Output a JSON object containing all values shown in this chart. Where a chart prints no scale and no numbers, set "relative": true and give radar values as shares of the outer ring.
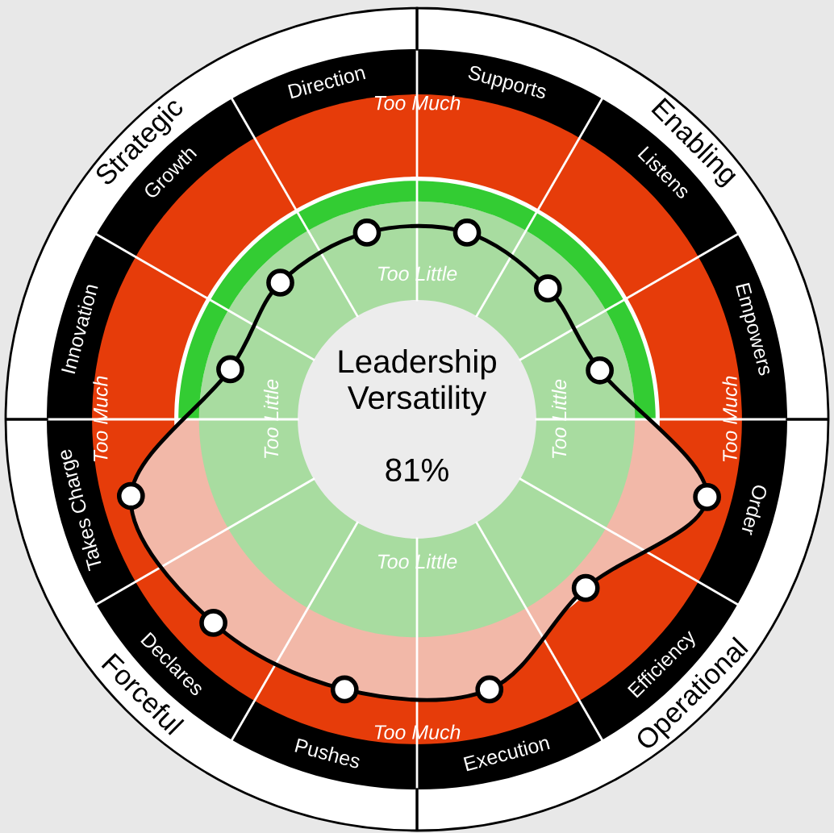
{
  "chart_data": {
    "type": "radar",
    "relative": true,
    "title": "Leadership\nVersatility",
    "subtitle": "81%",
    "categories": [
      "Direction",
      "Supports",
      "Listens",
      "Empowers",
      "Order",
      "Efficiency",
      "Execution",
      "Pushes",
      "Declares",
      "Takes Charge",
      "Innovation",
      "Growth"
    ],
    "series": [
      {
        "color": "#000000",
        "values": [
          0.47,
          0.47,
          0.45,
          0.46,
          0.73,
          0.58,
          0.68,
          0.68,
          0.7,
          0.72,
          0.47,
          0.47
        ]
      }
    ],
    "marker": "circle",
    "annotations": [
      "Strategic",
      "Enabling",
      "Operational",
      "Forceful",
      "Too Much",
      "Too Much",
      "Too Much",
      "Too Much",
      "Too Little",
      "Too Little",
      "Too Little",
      "Too Little"
    ]
  }
}
